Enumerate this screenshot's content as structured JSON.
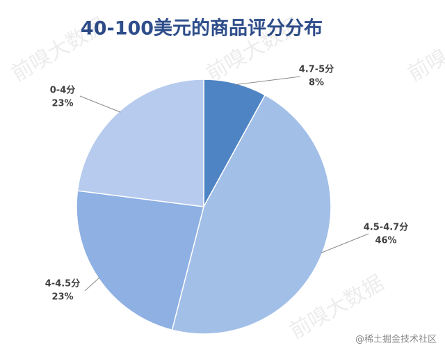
{
  "chart_data": {
    "type": "pie",
    "title": "40-100美元的商品评分分布",
    "categories": [
      "4.7-5分",
      "4.5-4.7分",
      "4-4.5分",
      "0-4分"
    ],
    "values": [
      8,
      46,
      23,
      23
    ],
    "value_labels": [
      "8%",
      "46%",
      "23%",
      "23%"
    ],
    "colors": [
      "#4f84c4",
      "#a2bfe8",
      "#8eb0e3",
      "#b6cbed"
    ],
    "watermark": "前嗅大数据",
    "credit": "@稀土掘金技术社区"
  }
}
